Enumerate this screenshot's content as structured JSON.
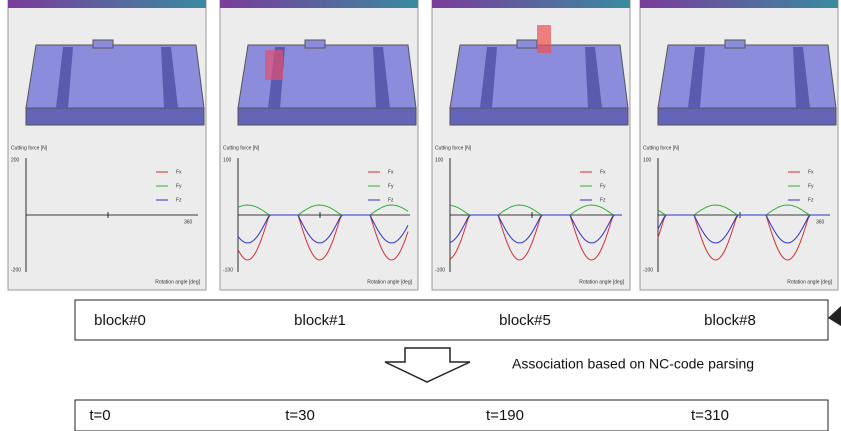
{
  "panels": [
    {
      "y_axis_title": "Cutting force [N]",
      "y_max": "200",
      "y_min": "-200",
      "x_max": "360",
      "x_axis_title": "Rotation angle [deg]",
      "legend": [
        "Fx",
        "Fy",
        "Fz"
      ]
    },
    {
      "y_axis_title": "Cutting force [N]",
      "y_max": "100",
      "y_min": "-100",
      "x_axis_title": "Rotation angle [deg]",
      "legend": [
        "Fx",
        "Fy",
        "Fz"
      ]
    },
    {
      "y_axis_title": "Cutting force [N]",
      "y_max": "100",
      "y_min": "-100",
      "x_axis_title": "Rotation angle [deg]",
      "legend": [
        "Fx",
        "Fy",
        "Fz"
      ]
    },
    {
      "y_axis_title": "Cutting force [N]",
      "y_max": "100",
      "y_min": "-100",
      "x_max": "360",
      "x_axis_title": "Rotation angle [deg]",
      "legend": [
        "Fx",
        "Fy",
        "Fz"
      ]
    }
  ],
  "blocks": [
    "block#0",
    "block#1",
    "block#5",
    "block#8"
  ],
  "arrow_label": "Association based on NC-code parsing",
  "times": [
    "t=0",
    "t=30",
    "t=190",
    "t=310"
  ]
}
